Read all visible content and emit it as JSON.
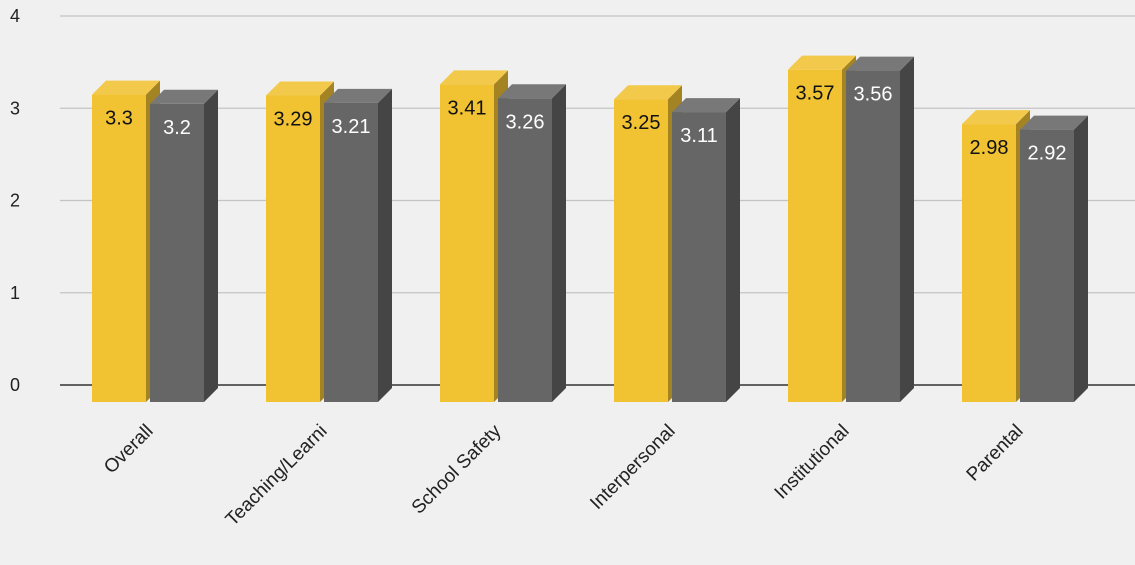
{
  "chart_data": {
    "type": "bar",
    "style": "3d-clustered",
    "categories": [
      "Overall",
      "Teaching/Learni",
      "School Safety",
      "Interpersonal",
      "Institutional",
      "Parental"
    ],
    "series": [
      {
        "values": [
          3.3,
          3.29,
          3.41,
          3.25,
          3.57,
          2.98
        ],
        "color": "#f1c232",
        "label_color": "#111111"
      },
      {
        "values": [
          3.2,
          3.21,
          3.26,
          3.11,
          3.56,
          2.92
        ],
        "color": "#666666",
        "label_color": "#ffffff"
      }
    ],
    "y_ticks": [
      "0",
      "1",
      "2",
      "3",
      "4"
    ],
    "ylim": [
      0,
      4
    ],
    "grid": true,
    "legend": "none",
    "data_labels": true,
    "x_label_rotation": -45
  }
}
